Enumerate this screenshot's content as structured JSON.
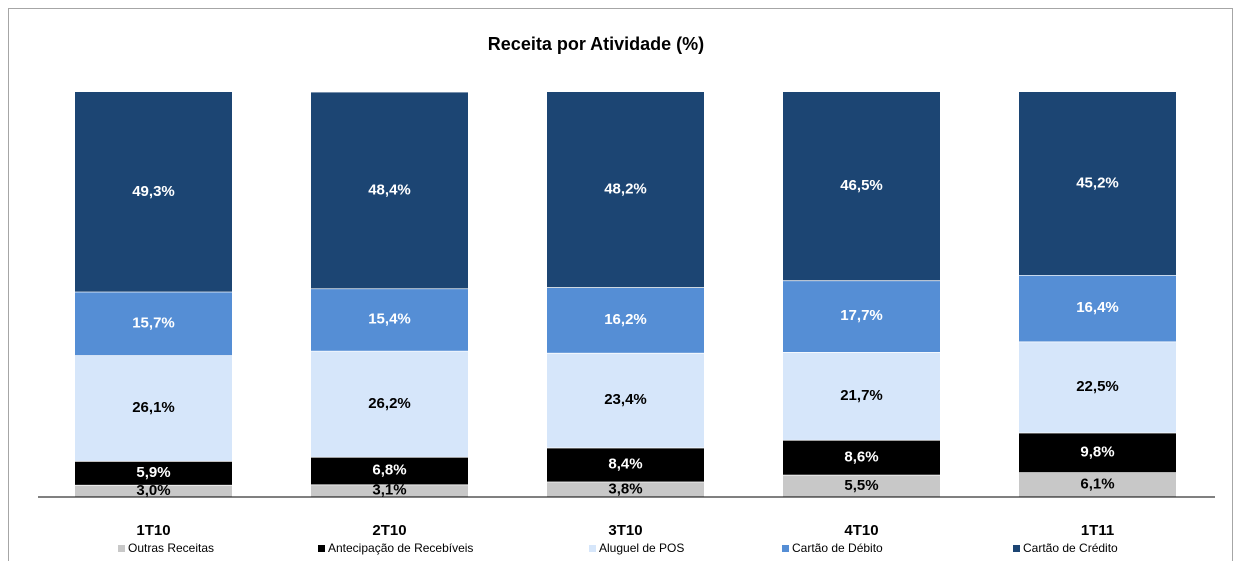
{
  "chart_data": {
    "type": "stacked_bar",
    "title": "Receita por Atividade (%)",
    "categories": [
      "1T10",
      "2T10",
      "3T10",
      "4T10",
      "1T11"
    ],
    "series": [
      {
        "name": "Outras Receitas",
        "color": "#c8c8c8",
        "values": [
          3.0,
          3.1,
          3.8,
          5.5,
          6.1
        ],
        "value_labels": [
          "3,0%",
          "3,1%",
          "3,8%",
          "5,5%",
          "6,1%"
        ]
      },
      {
        "name": "Antecipação de Recebíveis",
        "color": "#000000",
        "values": [
          5.9,
          6.8,
          8.4,
          8.6,
          9.8
        ],
        "value_labels": [
          "5,9%",
          "6,8%",
          "8,4%",
          "8,6%",
          "9,8%"
        ]
      },
      {
        "name": "Aluguel de POS",
        "color": "#d6e6fa",
        "values": [
          26.1,
          26.2,
          23.4,
          21.7,
          22.5
        ],
        "value_labels": [
          "26,1%",
          "26,2%",
          "23,4%",
          "21,7%",
          "22,5%"
        ]
      },
      {
        "name": "Cartão de Débito",
        "color": "#558ed5",
        "values": [
          15.7,
          15.4,
          16.2,
          17.7,
          16.4
        ],
        "value_labels": [
          "15,7%",
          "15,4%",
          "16,2%",
          "17,7%",
          "16,4%"
        ]
      },
      {
        "name": "Cartão de Crédito",
        "color": "#1c4573",
        "values": [
          49.3,
          48.4,
          48.2,
          46.5,
          45.2
        ],
        "value_labels": [
          "49,3%",
          "48,4%",
          "48,2%",
          "46,5%",
          "45,2%"
        ]
      }
    ],
    "ylim": [
      0,
      100
    ],
    "legend": "bottom"
  }
}
